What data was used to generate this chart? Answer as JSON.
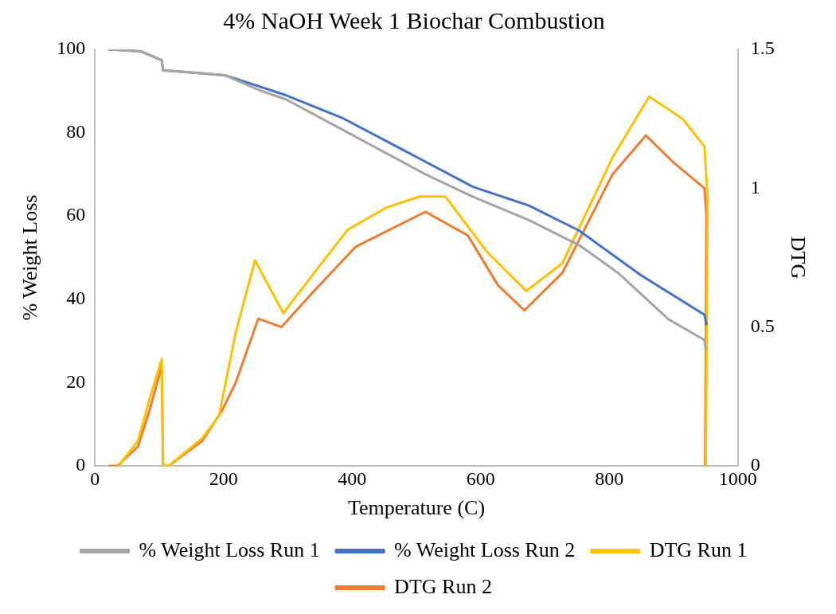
{
  "chart_data": {
    "type": "line",
    "title": "4% NaOH Week 1 Biochar Combustion",
    "xlabel": "Temperature (C)",
    "ylabel": "% Weight Loss",
    "y2label": "DTG",
    "xlim": [
      0,
      1000
    ],
    "xticks": [
      0,
      200,
      400,
      600,
      800,
      1000
    ],
    "ylim": [
      0,
      100
    ],
    "yticks": [
      0,
      20,
      40,
      60,
      80,
      100
    ],
    "y2lim": [
      0,
      1.5
    ],
    "y2ticks": [
      0,
      0.5,
      1,
      1.5
    ],
    "grid": false,
    "legend": "bottom",
    "marker": "none",
    "line_style": "solid",
    "series": [
      {
        "name": "% Weight Loss Run 1",
        "color": "#a5a5a5",
        "x": [
          22,
          72,
          104,
          106,
          202,
          254,
          297,
          384,
          514,
          588,
          675,
          753,
          814,
          892,
          948,
          950
        ],
        "values": [
          100,
          99.5,
          97.4,
          95,
          93.8,
          90.3,
          88,
          80.8,
          70,
          64.6,
          59,
          53,
          46.3,
          35.2,
          30.2,
          28
        ]
      },
      {
        "name": "% Weight Loss Run 2",
        "color": "#4472c4",
        "x": [
          22,
          72,
          104,
          106,
          202,
          297,
          384,
          501,
          588,
          675,
          753,
          849,
          948,
          951
        ],
        "values": [
          100,
          99.5,
          97.4,
          95,
          93.8,
          89,
          83.6,
          74.1,
          67,
          62.5,
          56.5,
          45.8,
          36.3,
          34
        ]
      },
      {
        "name": "DTG Run 1",
        "color": "#ffc000",
        "axis": "y2",
        "x": [
          37,
          67,
          85,
          104,
          106,
          115,
          167,
          193,
          219,
          249,
          293,
          341,
          393,
          453,
          505,
          545,
          610,
          671,
          727,
          805,
          862,
          914,
          948,
          953,
          950
        ],
        "values": [
          0,
          0.09,
          0.24,
          0.385,
          0,
          0,
          0.1,
          0.18,
          0.48,
          0.74,
          0.55,
          0.695,
          0.85,
          0.93,
          0.97,
          0.97,
          0.77,
          0.63,
          0.73,
          1.11,
          1.33,
          1.25,
          1.15,
          0.96,
          0
        ]
      },
      {
        "name": "DTG Run 2",
        "color": "#ed7d31",
        "axis": "y2",
        "x": [
          22,
          35,
          67,
          85,
          104,
          106,
          115,
          167,
          198,
          219,
          254,
          290,
          341,
          406,
          514,
          580,
          627,
          668,
          727,
          805,
          857,
          901,
          948,
          951,
          949
        ],
        "values": [
          0,
          0,
          0.07,
          0.2,
          0.36,
          0,
          0,
          0.09,
          0.2,
          0.3,
          0.53,
          0.5,
          0.63,
          0.79,
          0.915,
          0.83,
          0.65,
          0.56,
          0.695,
          1.05,
          1.19,
          1.09,
          1.0,
          0.9,
          0
        ]
      }
    ]
  }
}
